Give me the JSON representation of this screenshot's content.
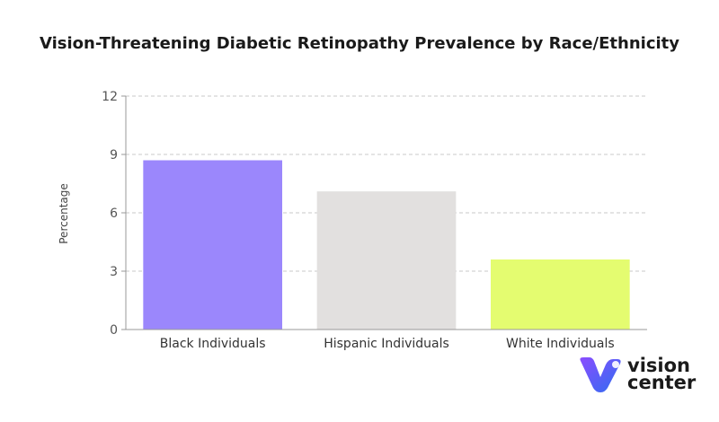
{
  "chart_data": {
    "type": "bar",
    "title": "Vision-Threatening Diabetic Retinopathy Prevalence by Race/Ethnicity",
    "ylabel": "Percentage",
    "xlabel": "",
    "categories": [
      "Black Individuals",
      "Hispanic Individuals",
      "White Individuals"
    ],
    "values": [
      8.7,
      7.1,
      3.6
    ],
    "bar_colors": [
      "#9b87fc",
      "#e2e0df",
      "#e4fc70"
    ],
    "ylim": [
      0,
      12
    ],
    "yticks": [
      0,
      3,
      6,
      9,
      12
    ],
    "grid": true
  },
  "logo": {
    "line1": "vision",
    "line2": "center",
    "colors": [
      "#7b4dff",
      "#2f6df0"
    ]
  }
}
